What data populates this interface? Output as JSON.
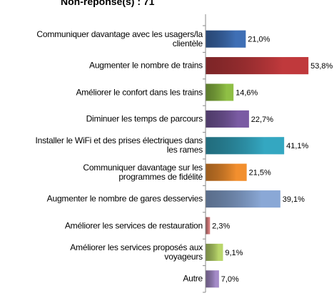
{
  "chart_data": {
    "type": "bar",
    "orientation": "horizontal",
    "title": "Non-réponse(s) : 71",
    "categories": [
      "Communiquer davantage avec les usagers/la clientèle",
      "Augmenter le nombre de trains",
      "Améliorer le confort dans les trains",
      "Diminuer les temps de parcours",
      "Installer le WiFi et des prises électriques dans les rames",
      "Communiquer davantage sur les programmes de fidélité",
      "Augmenter le nombre de gares desservies",
      "Améliorer les services de restauration",
      "Améliorer les services proposés aux voyageurs",
      "Autre"
    ],
    "values": [
      21.0,
      53.8,
      14.6,
      22.7,
      41.1,
      21.5,
      39.1,
      2.3,
      9.1,
      7.0
    ],
    "value_labels": [
      "21,0%",
      "53,8%",
      "14,6%",
      "22,7%",
      "41,1%",
      "21,5%",
      "39,1%",
      "2,3%",
      "9,1%",
      "7,0%"
    ],
    "colors": [
      "#3f6fb5",
      "#c0393c",
      "#8fbf45",
      "#7a5ba3",
      "#34a7c1",
      "#f28f2e",
      "#8aa8d6",
      "#d67c7c",
      "#b9d66b",
      "#a48bc8"
    ],
    "xlim": [
      0,
      56
    ]
  }
}
